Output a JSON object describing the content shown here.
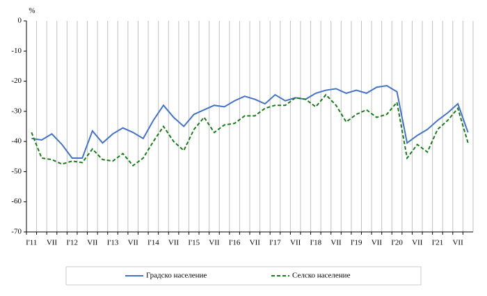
{
  "chart_data": {
    "type": "line",
    "y_unit_label": "%",
    "categories": [
      "I'11",
      null,
      "VII",
      null,
      "I'12",
      null,
      "VII",
      null,
      "I'13",
      null,
      "VII",
      null,
      "I'14",
      null,
      "VII",
      null,
      "I'15",
      null,
      "VII",
      null,
      "I'16",
      null,
      "VII",
      null,
      "I'17",
      null,
      "VII",
      null,
      "I'18",
      null,
      "VII",
      null,
      "I'19",
      null,
      "VII",
      null,
      "I'20",
      null,
      "VII",
      null,
      "I'21",
      null,
      "VII",
      null
    ],
    "series": [
      {
        "name": "Градско население",
        "color": "#4472c4",
        "dash": false,
        "values": [
          -39,
          -39.5,
          -37.5,
          -41,
          -45.5,
          -45.5,
          -36.5,
          -40.5,
          -37.5,
          -35.5,
          -37,
          -39,
          -33,
          -28,
          -32,
          -35,
          -31,
          -29.5,
          -28,
          -28.5,
          -26.5,
          -25,
          -26,
          -27.5,
          -24.5,
          -26.5,
          -25.5,
          -26,
          -24,
          -23,
          -22.5,
          -24,
          -23,
          -24,
          -22,
          -21.5,
          -23.5,
          -40.5,
          -38,
          -36,
          -33,
          -30.5,
          -27.5,
          -37
        ]
      },
      {
        "name": "Селско население",
        "color": "#1a7a1a",
        "dash": true,
        "values": [
          -37,
          -45.5,
          -46,
          -47.5,
          -46.5,
          -47,
          -42.5,
          -46,
          -46.5,
          -44,
          -48,
          -45.5,
          -40,
          -35,
          -40,
          -43,
          -36,
          -32,
          -37,
          -34.5,
          -34,
          -31.5,
          -31.5,
          -29,
          -28,
          -28,
          -25.5,
          -26,
          -28.5,
          -24.5,
          -28,
          -33.5,
          -31,
          -29.5,
          -32,
          -31,
          -27,
          -45.5,
          -41,
          -43.5,
          -36,
          -33,
          -29,
          -40.5
        ]
      }
    ],
    "ylim": [
      -70,
      0
    ],
    "yticks": [
      0,
      -10,
      -20,
      -30,
      -40,
      -50,
      -60,
      -70
    ],
    "grid": true
  }
}
